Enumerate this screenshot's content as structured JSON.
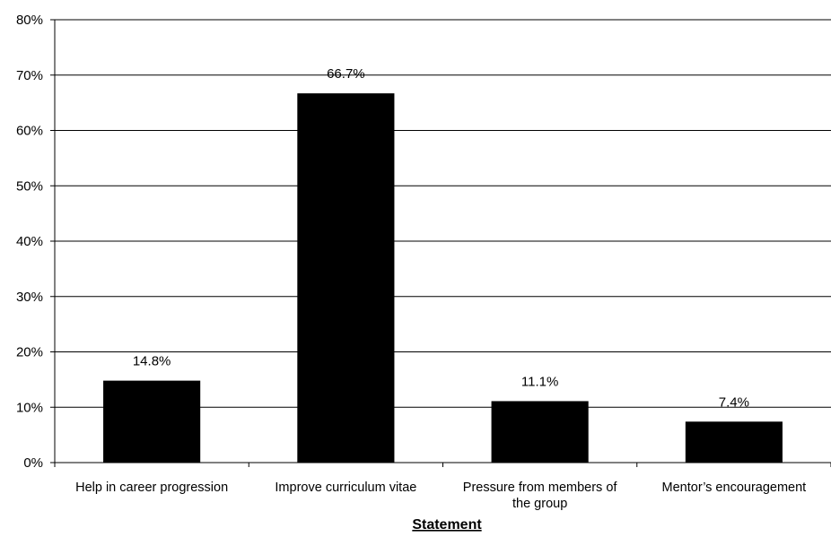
{
  "chart_data": {
    "type": "bar",
    "categories": [
      [
        "Help in career progression"
      ],
      [
        "Improve curriculum vitae"
      ],
      [
        "Pressure from members of",
        "the group"
      ],
      [
        "Mentor’s encouragement"
      ]
    ],
    "values": [
      14.8,
      66.7,
      11.1,
      7.4
    ],
    "data_labels": [
      "14.8%",
      "66.7%",
      "11.1%",
      "7.4%"
    ],
    "y_ticks": [
      "0%",
      "10%",
      "20%",
      "30%",
      "40%",
      "50%",
      "60%",
      "70%",
      "80%"
    ],
    "ylim": [
      0,
      80
    ],
    "xlabel": "Statement",
    "ylabel": "",
    "grid": true,
    "bar_color": "#000000"
  }
}
